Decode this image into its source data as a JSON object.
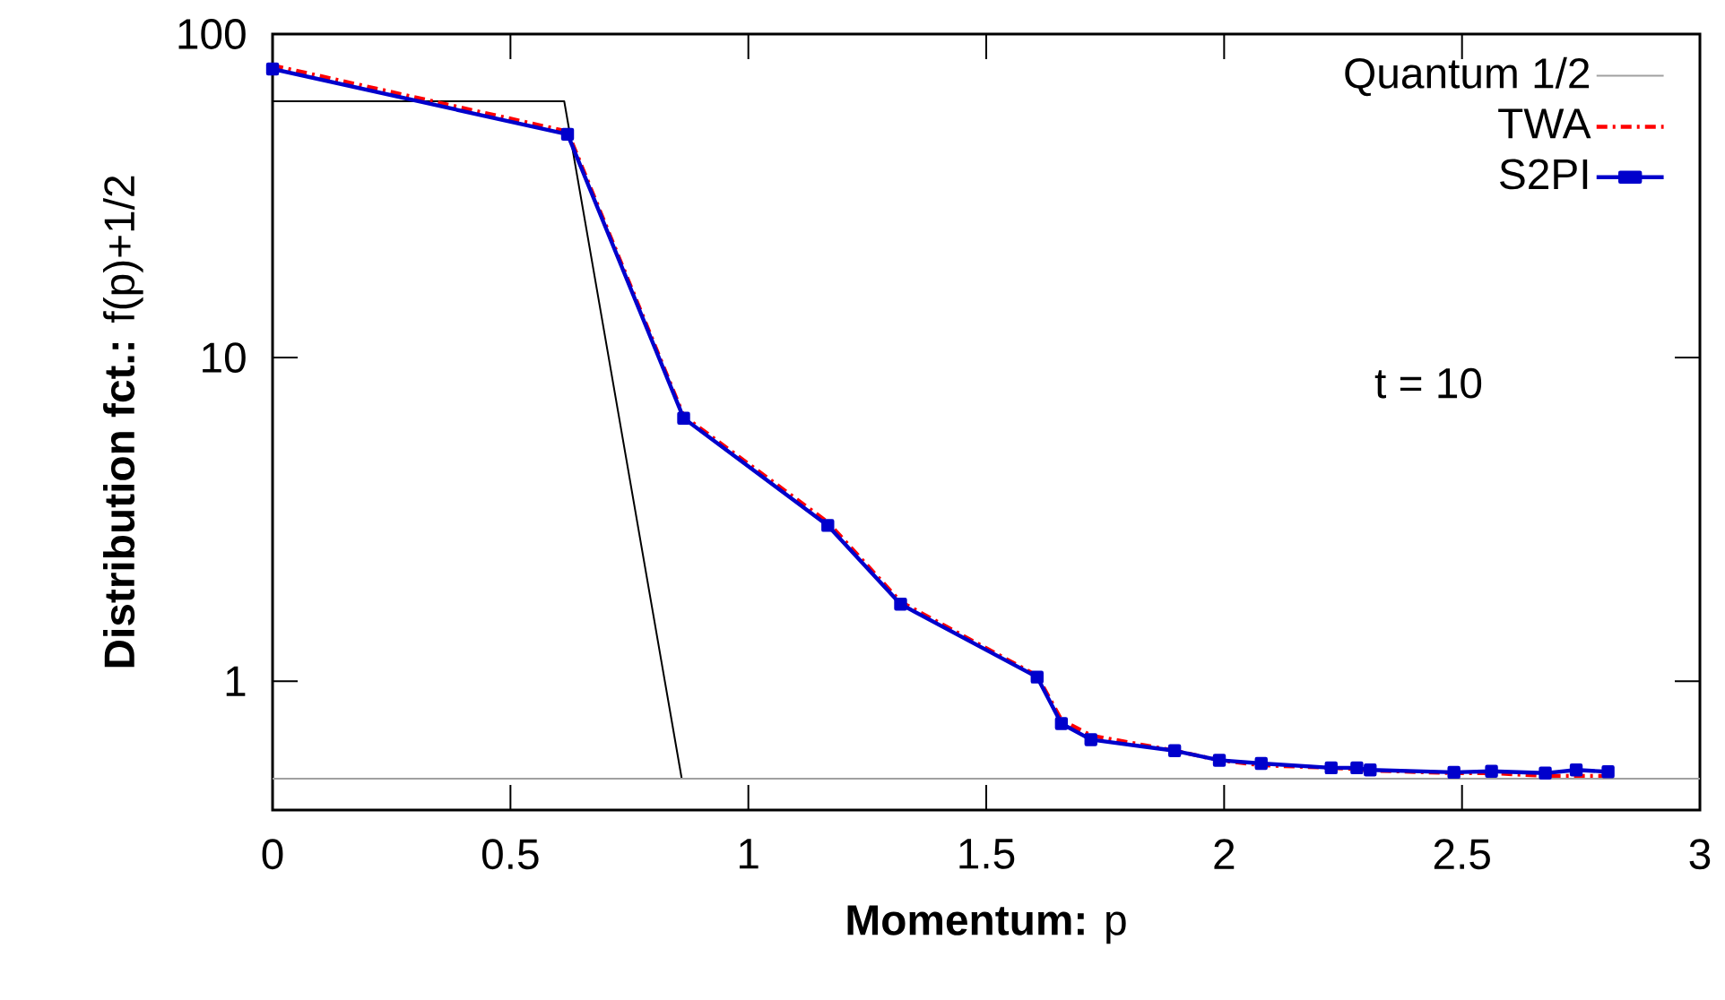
{
  "chart_data": {
    "type": "line",
    "xlabel": "**Momentum:** p",
    "ylabel": "**Distribution fct.:** f(p)+1/2",
    "xlim": [
      0,
      3
    ],
    "ylim": [
      0.4,
      100
    ],
    "xticks": [
      0,
      0.5,
      1,
      1.5,
      2,
      2.5,
      3
    ],
    "yticks": [
      1,
      10,
      100
    ],
    "log": "y",
    "grid": false,
    "legend": "top right",
    "annotations": [
      "t = 10"
    ],
    "series": [
      {
        "color": "#000000",
        "x": [
          0,
          0.613,
          0.86,
          2.8
        ],
        "values": [
          62,
          62,
          0.5,
          0.5
        ],
        "line_style": "solid",
        "marker": "none"
      },
      {
        "name": "Quantum 1/2",
        "color": "#a0a0a0",
        "x": [
          0,
          3
        ],
        "values": [
          0.5,
          0.5
        ],
        "line_style": "solid",
        "marker": "none"
      },
      {
        "name": "TWA",
        "color": "#ff0000",
        "x": [
          0,
          0.62,
          0.864,
          1.167,
          1.32,
          1.607,
          1.658,
          1.72,
          1.896,
          1.99,
          2.078,
          2.225,
          2.279,
          2.307,
          2.483,
          2.562,
          2.675,
          2.74,
          2.807
        ],
        "values": [
          80,
          50,
          6.6,
          3.1,
          1.76,
          1.04,
          0.76,
          0.68,
          0.61,
          0.57,
          0.55,
          0.54,
          0.535,
          0.53,
          0.52,
          0.52,
          0.51,
          0.51,
          0.51
        ],
        "line_style": "dashdotted",
        "marker": "none"
      },
      {
        "name": "S2PI",
        "color": "#0000cc",
        "x": [
          0,
          0.62,
          0.864,
          1.167,
          1.32,
          1.607,
          1.658,
          1.72,
          1.896,
          1.99,
          2.078,
          2.225,
          2.279,
          2.307,
          2.483,
          2.562,
          2.675,
          2.74,
          2.807
        ],
        "values": [
          78,
          49,
          6.5,
          3.03,
          1.73,
          1.03,
          0.74,
          0.66,
          0.61,
          0.57,
          0.557,
          0.54,
          0.54,
          0.532,
          0.523,
          0.527,
          0.52,
          0.532,
          0.525
        ],
        "line_style": "solid",
        "marker": "square"
      }
    ]
  }
}
